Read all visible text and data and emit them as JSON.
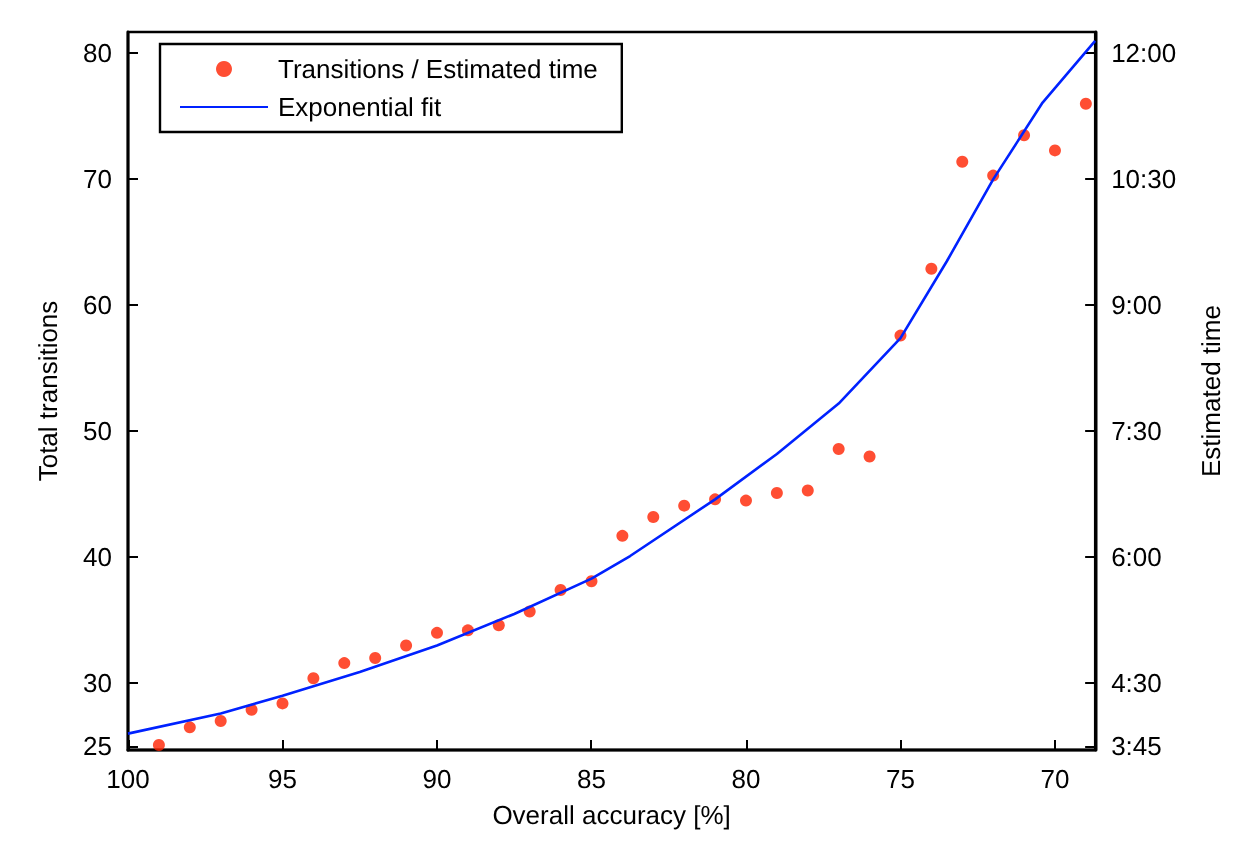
{
  "chart_data": {
    "type": "scatter",
    "xlabel": "Overall accuracy [%]",
    "ylabel": "Total transitions",
    "y2label": "Estimated time",
    "xlim": [
      100,
      68.7
    ],
    "xticks": [
      100,
      95,
      90,
      85,
      80,
      75,
      70
    ],
    "ylim": [
      24.7,
      81.7
    ],
    "yticks": [
      25,
      30,
      40,
      50,
      60,
      70,
      80
    ],
    "y2lim": [
      3.705,
      12.255
    ],
    "y2ticks": [
      {
        "value": 3.75,
        "label": "3:45"
      },
      {
        "value": 4.5,
        "label": "4:30"
      },
      {
        "value": 6,
        "label": "6:00"
      },
      {
        "value": 7.5,
        "label": "7:30"
      },
      {
        "value": 9,
        "label": "9:00"
      },
      {
        "value": 10.5,
        "label": "10:30"
      },
      {
        "value": 12,
        "label": "12:00"
      }
    ],
    "x": [
      99,
      98,
      97,
      96,
      95,
      94,
      93,
      92,
      91,
      90,
      89,
      88,
      87,
      86,
      85,
      84,
      83,
      82,
      81,
      80,
      79,
      78,
      77,
      76,
      75,
      74,
      73,
      72,
      71,
      70,
      69
    ],
    "series": [
      {
        "name": "Transitions / Estimated time",
        "color": "#ff2200",
        "marker": "circle",
        "values": [
          25.1,
          26.5,
          27.0,
          27.9,
          28.4,
          30.4,
          31.6,
          32.0,
          33.0,
          34.0,
          34.2,
          34.6,
          35.7,
          37.4,
          38.1,
          41.7,
          43.2,
          44.1,
          44.6,
          44.5,
          45.1,
          45.3,
          48.6,
          48.0,
          57.6,
          62.9,
          71.4,
          70.3,
          73.5,
          72.3,
          76.0
        ]
      },
      {
        "name": "Exponential fit",
        "type": "line",
        "color": "#0022ff",
        "line_style": "solid",
        "marker": "none",
        "x": [
          100,
          97,
          95,
          92.5,
          90,
          87.5,
          85,
          83.75,
          81,
          79,
          77,
          75,
          73.5,
          72,
          70.4,
          68.7
        ],
        "values": [
          26.0,
          27.6,
          29.0,
          30.9,
          33.0,
          35.5,
          38.3,
          40.1,
          44.6,
          48.2,
          52.2,
          57.4,
          63.5,
          70.0,
          76.1,
          81.0
        ]
      }
    ],
    "legend": "top left",
    "grid": false
  }
}
